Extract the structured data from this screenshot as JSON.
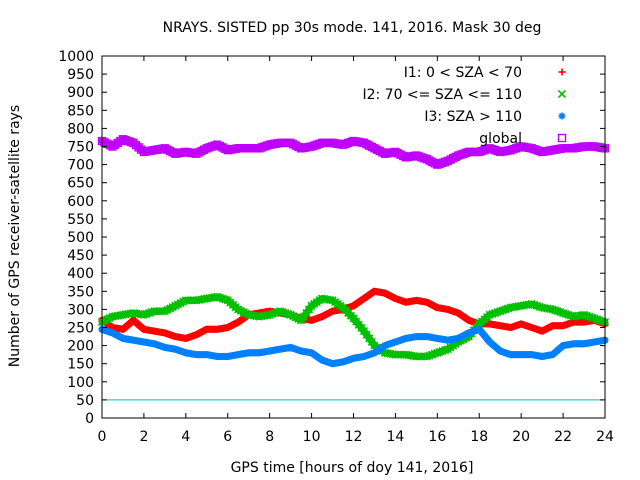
{
  "chart_data": {
    "type": "scatter",
    "title": "NRAYS. SISTED pp 30s mode. 141, 2016. Mask 30 deg",
    "xlabel": "GPS time [hours of doy 141, 2016]",
    "ylabel": "Number of GPS receiver-satellite rays",
    "xlim": [
      0,
      24
    ],
    "ylim": [
      0,
      1000
    ],
    "xticks": [
      "0",
      "2",
      "4",
      "6",
      "8",
      "10",
      "12",
      "14",
      "16",
      "18",
      "20",
      "22",
      "24"
    ],
    "yticks": [
      "0",
      "50",
      "100",
      "150",
      "200",
      "250",
      "300",
      "350",
      "400",
      "450",
      "500",
      "550",
      "600",
      "650",
      "700",
      "750",
      "800",
      "850",
      "900",
      "950",
      "1000"
    ],
    "legend_position": "top-right",
    "threshold_line": {
      "y": 50,
      "color": "#00c0c0"
    },
    "series": [
      {
        "name": "I1: 0 < SZA < 70",
        "marker": "+",
        "color": "#ff0000",
        "x": [
          0,
          0.5,
          1,
          1.5,
          2,
          3,
          3.5,
          4,
          4.5,
          5,
          5.5,
          6,
          6.5,
          7,
          7.5,
          8,
          8.5,
          9,
          9.5,
          10,
          10.5,
          11,
          11.5,
          12,
          12.5,
          13,
          13.5,
          14,
          14.5,
          15,
          15.5,
          16,
          16.5,
          17,
          17.5,
          18,
          18.5,
          19,
          19.5,
          20,
          20.5,
          21,
          21.5,
          22,
          22.5,
          23,
          23.5,
          24
        ],
        "y": [
          270,
          250,
          245,
          270,
          245,
          235,
          225,
          220,
          230,
          245,
          245,
          250,
          265,
          285,
          290,
          295,
          290,
          285,
          275,
          270,
          280,
          295,
          300,
          310,
          330,
          350,
          345,
          330,
          320,
          325,
          320,
          305,
          300,
          290,
          270,
          260,
          260,
          255,
          250,
          260,
          250,
          240,
          255,
          255,
          265,
          265,
          270,
          260
        ]
      },
      {
        "name": "I2: 70 <= SZA <= 110",
        "marker": "x",
        "color": "#00c000",
        "x": [
          0,
          0.5,
          1,
          1.5,
          2,
          2.5,
          3,
          3.5,
          4,
          4.5,
          5,
          5.5,
          6,
          6.5,
          7,
          7.5,
          8,
          8.5,
          9,
          9.5,
          10,
          10.5,
          11,
          11.5,
          12,
          12.5,
          13,
          13.5,
          14,
          14.5,
          15,
          15.5,
          16,
          16.5,
          17,
          17.5,
          18,
          18.5,
          19,
          19.5,
          20,
          20.5,
          21,
          21.5,
          22,
          22.5,
          23,
          23.5,
          24
        ],
        "y": [
          265,
          280,
          285,
          290,
          285,
          295,
          295,
          310,
          325,
          325,
          330,
          335,
          325,
          300,
          285,
          280,
          285,
          295,
          285,
          270,
          310,
          330,
          325,
          305,
          275,
          240,
          200,
          180,
          175,
          175,
          170,
          170,
          180,
          190,
          210,
          225,
          260,
          285,
          295,
          305,
          310,
          315,
          305,
          300,
          290,
          280,
          285,
          275,
          265
        ]
      },
      {
        "name": "I3: SZA > 110",
        "marker": "*",
        "color": "#0080ff",
        "x": [
          0,
          0.5,
          1,
          1.5,
          2,
          2.5,
          3,
          3.5,
          4,
          4.5,
          5,
          5.5,
          6,
          6.5,
          7,
          7.5,
          8,
          8.5,
          9,
          9.5,
          10,
          10.5,
          11,
          11.5,
          12,
          12.5,
          13,
          13.5,
          14,
          14.5,
          15,
          15.5,
          16,
          16.5,
          17,
          17.5,
          18,
          18.5,
          19,
          19.5,
          20,
          20.5,
          21,
          21.5,
          22,
          22.5,
          23,
          23.5,
          24
        ],
        "y": [
          245,
          235,
          220,
          215,
          210,
          205,
          195,
          190,
          180,
          175,
          175,
          170,
          170,
          175,
          180,
          180,
          185,
          190,
          195,
          185,
          180,
          160,
          150,
          155,
          165,
          170,
          180,
          200,
          210,
          220,
          225,
          225,
          220,
          215,
          220,
          235,
          245,
          210,
          185,
          175,
          175,
          175,
          170,
          175,
          200,
          205,
          205,
          210,
          215
        ]
      },
      {
        "name": "global",
        "marker": "square",
        "color": "#c000ff",
        "x": [
          0,
          0.5,
          1,
          1.5,
          2,
          2.5,
          3,
          3.5,
          4,
          4.5,
          5,
          5.5,
          6,
          6.5,
          7,
          7.5,
          8,
          8.5,
          9,
          9.5,
          10,
          10.5,
          11,
          11.5,
          12,
          12.5,
          13,
          13.5,
          14,
          14.5,
          15,
          15.5,
          16,
          16.5,
          17,
          17.5,
          18,
          18.5,
          19,
          19.5,
          20,
          20.5,
          21,
          21.5,
          22,
          22.5,
          23,
          23.5,
          24
        ],
        "y": [
          765,
          750,
          770,
          760,
          735,
          740,
          745,
          730,
          735,
          730,
          745,
          755,
          740,
          745,
          745,
          745,
          755,
          760,
          760,
          745,
          750,
          760,
          760,
          755,
          765,
          760,
          745,
          730,
          735,
          720,
          725,
          715,
          700,
          710,
          725,
          735,
          735,
          745,
          735,
          740,
          750,
          745,
          735,
          740,
          745,
          745,
          750,
          750,
          745
        ]
      }
    ]
  }
}
